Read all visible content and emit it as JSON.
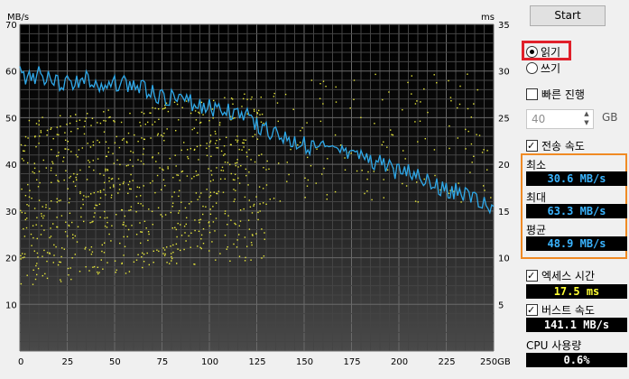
{
  "chart": {
    "y_left_unit": "MB/s",
    "y_right_unit": "ms",
    "y_left_ticks": [
      "70",
      "60",
      "50",
      "40",
      "30",
      "20",
      "10"
    ],
    "y_right_ticks": [
      "35",
      "30",
      "25",
      "20",
      "15",
      "10",
      "5"
    ],
    "x_ticks": [
      "0",
      "25",
      "50",
      "75",
      "100",
      "125",
      "150",
      "175",
      "200",
      "225",
      "250GB"
    ]
  },
  "chart_data": {
    "type": "line",
    "x_label": "GB",
    "x_range": [
      0,
      250
    ],
    "y_left_range": [
      0,
      70
    ],
    "y_right_range": [
      0,
      35
    ],
    "series": [
      {
        "name": "",
        "axis": "left",
        "color": "#2fa8e8",
        "x": [
          0,
          5,
          10,
          15,
          20,
          25,
          30,
          35,
          40,
          45,
          50,
          55,
          60,
          65,
          70,
          75,
          80,
          85,
          90,
          95,
          100,
          105,
          110,
          115,
          120,
          125,
          130,
          135,
          140,
          145,
          150,
          155,
          160,
          165,
          170,
          175,
          180,
          185,
          190,
          195,
          200,
          205,
          210,
          215,
          220,
          225,
          230,
          235,
          240,
          245,
          250
        ],
        "y": [
          61,
          60,
          61,
          60,
          59,
          59,
          59,
          60,
          58,
          57,
          59,
          59,
          58,
          58,
          57,
          56,
          56,
          55,
          55,
          54,
          54,
          53,
          53,
          52,
          52,
          50,
          49,
          48,
          47,
          46,
          46,
          45,
          45,
          44,
          44,
          43,
          43,
          42,
          42,
          41,
          40,
          40,
          39,
          38,
          37,
          36,
          36,
          35,
          34,
          33,
          31
        ]
      },
      {
        "name": "",
        "axis": "right",
        "type": "scatter",
        "color": "#e8e83a",
        "note_points": "dense scatter 5-25ms concentrated 0-130GB, sparse to 250GB"
      }
    ]
  },
  "panel": {
    "start_label": "Start",
    "read_label": "읽기",
    "write_label": "쓰기",
    "quick_label": "빠른 진행",
    "size_value": "40",
    "size_unit": "GB",
    "transfer_label": "전송 속도",
    "min_label": "최소",
    "min_value": "30.6 MB/s",
    "max_label": "최대",
    "max_value": "63.3 MB/s",
    "avg_label": "평균",
    "avg_value": "48.9 MB/s",
    "access_label": "엑세스 시간",
    "access_value": "17.5 ms",
    "burst_label": "버스트 속도",
    "burst_value": "141.1 MB/s",
    "cpu_label": "CPU 사용량",
    "cpu_value": "0.6%"
  }
}
